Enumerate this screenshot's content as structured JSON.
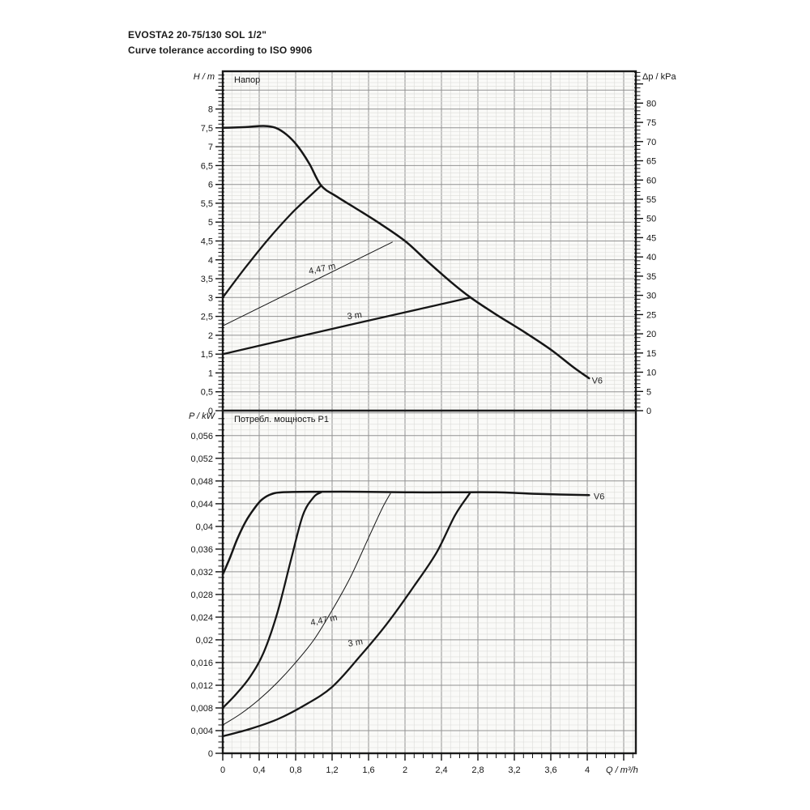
{
  "header": {
    "title_line1": "EVOSTA2 20-75/130 SOL 1/2\"",
    "title_line2": "Curve tolerance according to ISO 9906"
  },
  "chart_data": [
    {
      "type": "line",
      "id": "head-chart",
      "title": "Напор",
      "ylabel": "H / m",
      "ylabel_right": "Δp / kPa",
      "xlabel": "",
      "x_range": [
        0,
        4.53
      ],
      "y_range": [
        0,
        9.0
      ],
      "x_minor_step": 0.1,
      "x_major_step": 0.4,
      "y_minor_step": 0.1,
      "y_major_step": 0.5,
      "grid": true,
      "legend_position": "none",
      "y_tick_labels": [
        {
          "v": 0,
          "t": "0"
        },
        {
          "v": 0.5,
          "t": "0,5"
        },
        {
          "v": 1,
          "t": "1"
        },
        {
          "v": 1.5,
          "t": "1,5"
        },
        {
          "v": 2,
          "t": "2"
        },
        {
          "v": 2.5,
          "t": "2,5"
        },
        {
          "v": 3,
          "t": "3"
        },
        {
          "v": 3.5,
          "t": "3,5"
        },
        {
          "v": 4,
          "t": "4"
        },
        {
          "v": 4.5,
          "t": "4,5"
        },
        {
          "v": 5,
          "t": "5"
        },
        {
          "v": 5.5,
          "t": "5,5"
        },
        {
          "v": 6,
          "t": "6"
        },
        {
          "v": 6.5,
          "t": "6,5"
        },
        {
          "v": 7,
          "t": "7"
        },
        {
          "v": 7.5,
          "t": "7,5"
        },
        {
          "v": 8,
          "t": "8"
        }
      ],
      "right_axis": {
        "kpa_per_m": 9.81,
        "minor_step_kpa": 1,
        "max_tick_kpa": 88,
        "tick_labels": [
          {
            "v": 0,
            "t": "0"
          },
          {
            "v": 5,
            "t": "5"
          },
          {
            "v": 10,
            "t": "10"
          },
          {
            "v": 15,
            "t": "15"
          },
          {
            "v": 20,
            "t": "20"
          },
          {
            "v": 25,
            "t": "25"
          },
          {
            "v": 30,
            "t": "30"
          },
          {
            "v": 35,
            "t": "35"
          },
          {
            "v": 40,
            "t": "40"
          },
          {
            "v": 45,
            "t": "45"
          },
          {
            "v": 50,
            "t": "50"
          },
          {
            "v": 55,
            "t": "55"
          },
          {
            "v": 60,
            "t": "60"
          },
          {
            "v": 65,
            "t": "65"
          },
          {
            "v": 70,
            "t": "70"
          },
          {
            "v": 75,
            "t": "75"
          },
          {
            "v": 80,
            "t": "80"
          }
        ]
      },
      "series": [
        {
          "name": "max-speed-head",
          "label": "V6",
          "thickness": 2.5,
          "smooth": true,
          "points": [
            [
              0,
              7.5
            ],
            [
              0.25,
              7.52
            ],
            [
              0.45,
              7.55
            ],
            [
              0.58,
              7.5
            ],
            [
              0.7,
              7.32
            ],
            [
              0.82,
              7.02
            ],
            [
              0.95,
              6.55
            ],
            [
              1.08,
              5.97
            ],
            [
              1.25,
              5.68
            ],
            [
              1.45,
              5.38
            ],
            [
              1.7,
              5.0
            ],
            [
              2.0,
              4.5
            ],
            [
              2.25,
              3.95
            ],
            [
              2.5,
              3.42
            ],
            [
              2.72,
              3.0
            ],
            [
              3.0,
              2.55
            ],
            [
              3.3,
              2.1
            ],
            [
              3.6,
              1.62
            ],
            [
              3.85,
              1.15
            ],
            [
              4.02,
              0.86
            ]
          ]
        },
        {
          "name": "proportional-limit-6m-head",
          "label": "",
          "thickness": 2.3,
          "smooth": true,
          "points": [
            [
              0,
              3.0
            ],
            [
              0.25,
              3.8
            ],
            [
              0.5,
              4.55
            ],
            [
              0.75,
              5.22
            ],
            [
              0.95,
              5.68
            ],
            [
              1.08,
              5.97
            ]
          ]
        },
        {
          "name": "setpoint-4-47m-head",
          "label": "4,47 m",
          "thickness": 1.0,
          "smooth": false,
          "points": [
            [
              0,
              2.25
            ],
            [
              1.86,
              4.47
            ]
          ]
        },
        {
          "name": "setpoint-3m-head",
          "label": "3 m",
          "thickness": 2.3,
          "smooth": true,
          "points": [
            [
              0,
              1.5
            ],
            [
              1.4,
              2.28
            ],
            [
              2.72,
              3.0
            ]
          ]
        }
      ],
      "annotations": [
        {
          "text": "4,47 m",
          "x": 0.95,
          "y": 3.62,
          "rotate": -12
        },
        {
          "text": "3 m",
          "x": 1.37,
          "y": 2.42,
          "rotate": -8
        },
        {
          "text": "V6",
          "x": 4.05,
          "y": 0.72,
          "rotate": 0
        }
      ]
    },
    {
      "type": "line",
      "id": "power-chart",
      "title": "Потребл. мощность P1",
      "ylabel": "P / kW",
      "xlabel": "Q / m³/h",
      "x_range": [
        0,
        4.53
      ],
      "y_range": [
        0,
        0.0604
      ],
      "x_minor_step": 0.1,
      "x_major_step": 0.4,
      "y_minor_step": 0.001,
      "y_major_step": 0.004,
      "grid": true,
      "legend_position": "none",
      "y_tick_labels": [
        {
          "v": 0,
          "t": "0"
        },
        {
          "v": 0.004,
          "t": "0,004"
        },
        {
          "v": 0.008,
          "t": "0,008"
        },
        {
          "v": 0.012,
          "t": "0,012"
        },
        {
          "v": 0.016,
          "t": "0,016"
        },
        {
          "v": 0.02,
          "t": "0,02"
        },
        {
          "v": 0.024,
          "t": "0,024"
        },
        {
          "v": 0.028,
          "t": "0,028"
        },
        {
          "v": 0.032,
          "t": "0,032"
        },
        {
          "v": 0.036,
          "t": "0,036"
        },
        {
          "v": 0.04,
          "t": "0,04"
        },
        {
          "v": 0.044,
          "t": "0,044"
        },
        {
          "v": 0.048,
          "t": "0,048"
        },
        {
          "v": 0.052,
          "t": "0,052"
        },
        {
          "v": 0.056,
          "t": "0,056"
        }
      ],
      "x_tick_labels": [
        {
          "v": 0,
          "t": "0"
        },
        {
          "v": 0.4,
          "t": "0,4"
        },
        {
          "v": 0.8,
          "t": "0,8"
        },
        {
          "v": 1.2,
          "t": "1,2"
        },
        {
          "v": 1.6,
          "t": "1,6"
        },
        {
          "v": 2,
          "t": "2"
        },
        {
          "v": 2.4,
          "t": "2,4"
        },
        {
          "v": 2.8,
          "t": "2,8"
        },
        {
          "v": 3.2,
          "t": "3,2"
        },
        {
          "v": 3.6,
          "t": "3,6"
        },
        {
          "v": 4,
          "t": "4"
        }
      ],
      "series": [
        {
          "name": "max-speed-power",
          "label": "V6",
          "thickness": 2.5,
          "smooth": true,
          "points": [
            [
              0,
              0.0315
            ],
            [
              0.08,
              0.0345
            ],
            [
              0.16,
              0.0378
            ],
            [
              0.25,
              0.0408
            ],
            [
              0.33,
              0.0428
            ],
            [
              0.42,
              0.0446
            ],
            [
              0.52,
              0.0456
            ],
            [
              0.65,
              0.046
            ],
            [
              1.0,
              0.0461
            ],
            [
              1.5,
              0.0461
            ],
            [
              2.0,
              0.046
            ],
            [
              2.5,
              0.046
            ],
            [
              3.0,
              0.046
            ],
            [
              3.5,
              0.0457
            ],
            [
              4.02,
              0.0455
            ]
          ]
        },
        {
          "name": "proportional-limit-6m-power",
          "label": "",
          "thickness": 2.3,
          "smooth": true,
          "points": [
            [
              0,
              0.008
            ],
            [
              0.15,
              0.0105
            ],
            [
              0.3,
              0.0135
            ],
            [
              0.45,
              0.0178
            ],
            [
              0.6,
              0.0248
            ],
            [
              0.75,
              0.0342
            ],
            [
              0.88,
              0.042
            ],
            [
              1.0,
              0.0452
            ],
            [
              1.08,
              0.046
            ]
          ]
        },
        {
          "name": "setpoint-4-47m-power",
          "label": "4,47 m",
          "thickness": 1.0,
          "smooth": true,
          "points": [
            [
              0,
              0.005
            ],
            [
              0.2,
              0.007
            ],
            [
              0.4,
              0.0095
            ],
            [
              0.6,
              0.0125
            ],
            [
              0.8,
              0.016
            ],
            [
              1.0,
              0.02
            ],
            [
              1.2,
              0.0252
            ],
            [
              1.4,
              0.031
            ],
            [
              1.6,
              0.038
            ],
            [
              1.75,
              0.0432
            ],
            [
              1.84,
              0.0458
            ]
          ]
        },
        {
          "name": "setpoint-3m-power",
          "label": "3 m",
          "thickness": 2.3,
          "smooth": true,
          "points": [
            [
              0,
              0.003
            ],
            [
              0.3,
              0.0043
            ],
            [
              0.6,
              0.006
            ],
            [
              0.9,
              0.0085
            ],
            [
              1.2,
              0.0117
            ],
            [
              1.5,
              0.017
            ],
            [
              1.8,
              0.0228
            ],
            [
              2.1,
              0.0295
            ],
            [
              2.35,
              0.0355
            ],
            [
              2.55,
              0.042
            ],
            [
              2.71,
              0.0458
            ]
          ]
        }
      ],
      "annotations": [
        {
          "text": "4,47 m",
          "x": 0.97,
          "y": 0.0225,
          "rotate": -12
        },
        {
          "text": "3 m",
          "x": 1.38,
          "y": 0.0188,
          "rotate": -10
        },
        {
          "text": "V6",
          "x": 4.07,
          "y": 0.0448,
          "rotate": 0
        }
      ]
    }
  ],
  "colors": {
    "curve": "#161616",
    "border": "#1b1b1b",
    "grid_minor": "#dcdcd9",
    "grid_major": "#929292",
    "plot_bg": "#fafaf8",
    "text": "#151515"
  }
}
